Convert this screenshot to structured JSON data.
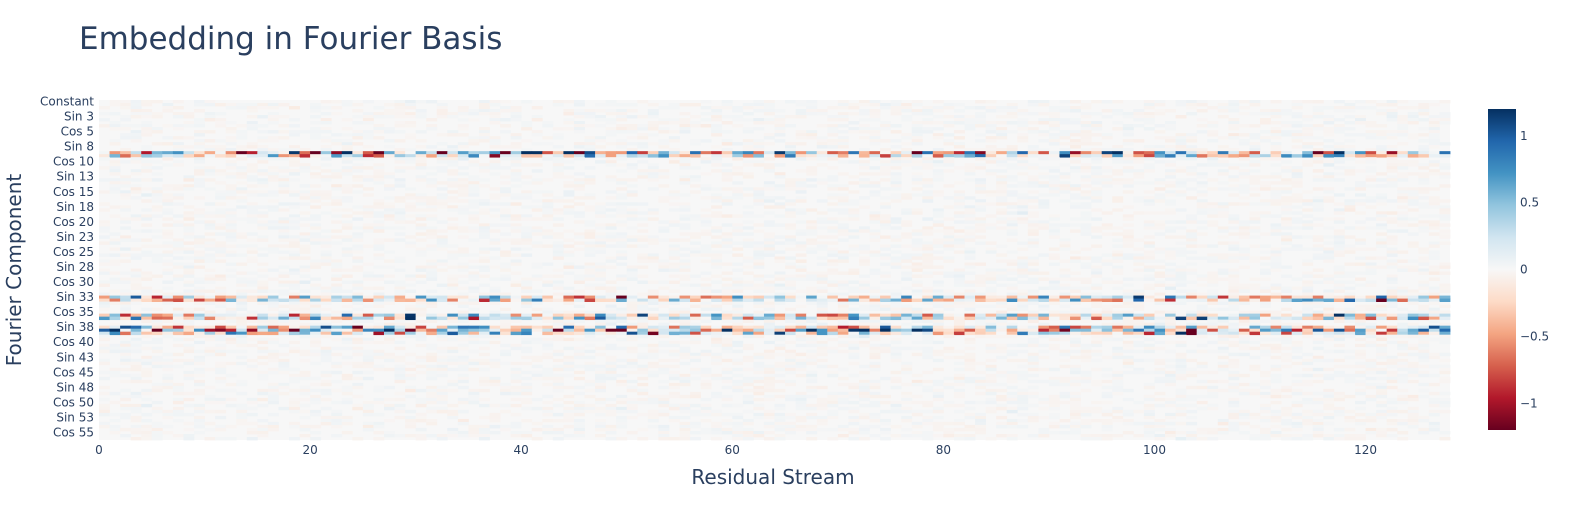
{
  "chart_data": {
    "type": "heatmap",
    "title": "Embedding in Fourier Basis",
    "xlabel": "Residual Stream",
    "ylabel": "Fourier Component",
    "x_range": [
      0,
      127
    ],
    "x_ticks": [
      0,
      20,
      40,
      60,
      80,
      100,
      120
    ],
    "y_tick_labels": [
      "Constant",
      "Sin 3",
      "Cos 5",
      "Sin 8",
      "Cos 10",
      "Sin 13",
      "Cos 15",
      "Sin 18",
      "Cos 20",
      "Sin 23",
      "Cos 25",
      "Sin 28",
      "Cos 30",
      "Sin 33",
      "Cos 35",
      "Sin 38",
      "Cos 40",
      "Sin 43",
      "Cos 45",
      "Sin 48",
      "Cos 50",
      "Sin 53",
      "Cos 55"
    ],
    "n_rows": 113,
    "n_cols": 128,
    "colorscale": "RdBu",
    "colorscale_stops": [
      "#67001f",
      "#b2182b",
      "#d6604d",
      "#f4a582",
      "#fddbc7",
      "#f7f7f7",
      "#d1e5f0",
      "#92c5de",
      "#4393c3",
      "#2166ac",
      "#053061"
    ],
    "zmin": -1.2,
    "zmax": 1.2,
    "colorbar_ticks": [
      1,
      0.5,
      0,
      -0.5,
      -1
    ],
    "colorbar_tick_labels": [
      "1",
      "0.5",
      "0",
      "−0.5",
      "−1"
    ],
    "active_components": [
      {
        "name": "Sin 9",
        "amplitude": 0.7
      },
      {
        "name": "Cos 9",
        "amplitude": 0.45
      },
      {
        "name": "Sin 33",
        "amplitude": 0.45
      },
      {
        "name": "Cos 33",
        "amplitude": 0.45
      },
      {
        "name": "Sin 36",
        "amplitude": 0.45
      },
      {
        "name": "Cos 36",
        "amplitude": 0.5
      },
      {
        "name": "Sin 38",
        "amplitude": 0.45
      },
      {
        "name": "Cos 38",
        "amplitude": 0.8
      },
      {
        "name": "Sin 39",
        "amplitude": 0.5
      }
    ],
    "background_noise": 0.03
  }
}
